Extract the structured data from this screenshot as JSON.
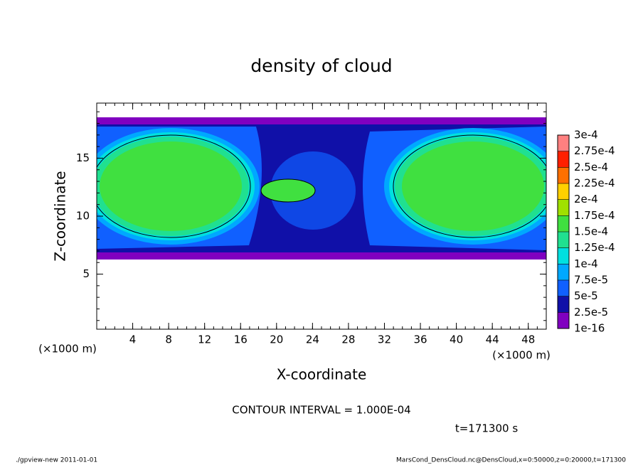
{
  "chart_data": {
    "type": "contour",
    "title": "density of cloud",
    "x_label": "X-coordinate",
    "y_label": "Z-coordinate",
    "x_unit": "(×1000 m)",
    "y_unit": "(×1000 m)",
    "xlim": [
      0,
      50
    ],
    "ylim": [
      0.25,
      19.75
    ],
    "xticks": [
      4,
      8,
      12,
      16,
      20,
      24,
      28,
      32,
      36,
      40,
      44,
      48
    ],
    "yticks": [
      5,
      10,
      15
    ],
    "contour_interval": "CONTOUR INTERVAL = 1.000E-04",
    "time": "t=171300 s",
    "footer_left": "./gpview-new  2011-01-01",
    "footer_right": "MarsCond_DensCloud.nc@DensCloud,x=0:50000,z=0:20000,t=171300",
    "colorbar": {
      "levels": [
        {
          "value": 1e-16,
          "label": "1e-16"
        },
        {
          "value": 2.5e-05,
          "label": "2.5e-5"
        },
        {
          "value": 5e-05,
          "label": "5e-5"
        },
        {
          "value": 7.5e-05,
          "label": "7.5e-5"
        },
        {
          "value": 0.0001,
          "label": "1e-4"
        },
        {
          "value": 0.000125,
          "label": "1.25e-4"
        },
        {
          "value": 0.00015,
          "label": "1.5e-4"
        },
        {
          "value": 0.000175,
          "label": "1.75e-4"
        },
        {
          "value": 0.0002,
          "label": "2e-4"
        },
        {
          "value": 0.000225,
          "label": "2.25e-4"
        },
        {
          "value": 0.00025,
          "label": "2.5e-4"
        },
        {
          "value": 0.000275,
          "label": "2.75e-4"
        },
        {
          "value": 0.0003,
          "label": "3e-4"
        }
      ],
      "colors": [
        "#8000c0",
        "#1010a8",
        "#1060ff",
        "#00a8ff",
        "#00e0e0",
        "#20e090",
        "#40e040",
        "#a0e000",
        "#ffd000",
        "#ff7000",
        "#ff2000",
        "#ff8080"
      ]
    }
  }
}
